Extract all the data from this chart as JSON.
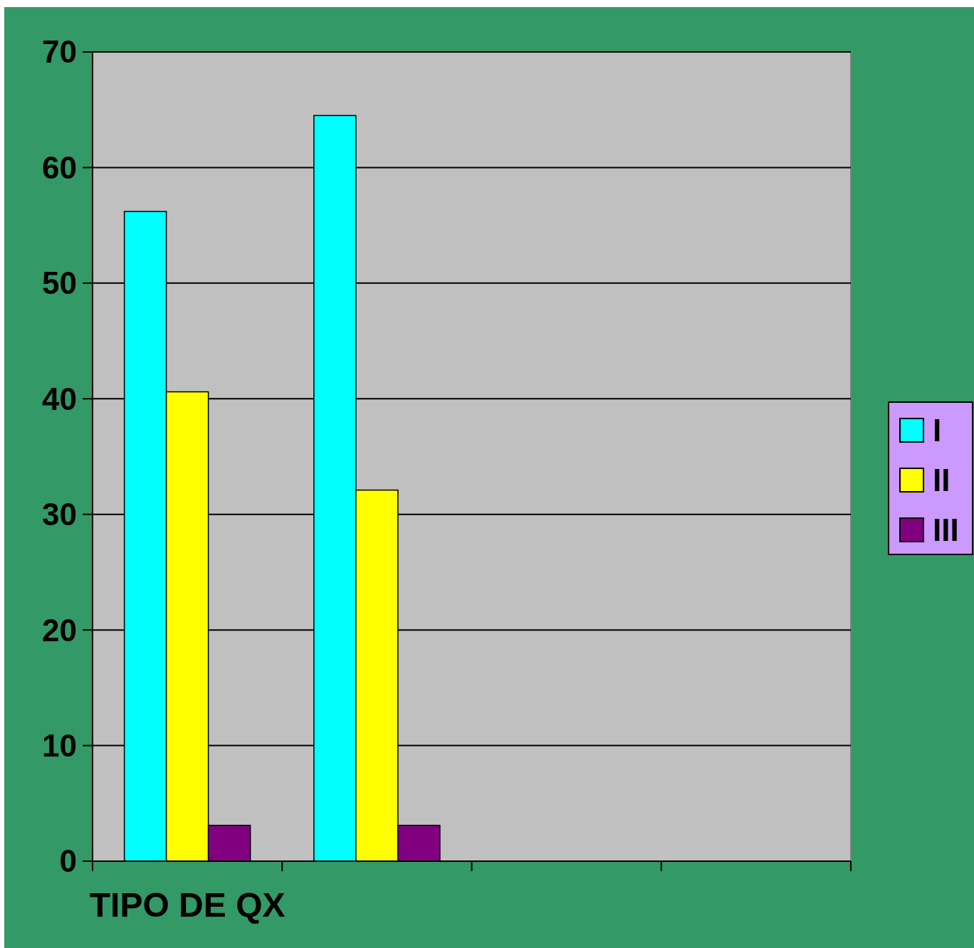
{
  "chart_data": {
    "type": "bar",
    "categories": [
      "TIPO DE QX",
      null,
      null,
      null
    ],
    "series": [
      {
        "name": "I",
        "color": "#00ffff",
        "values": [
          56.2,
          64.5,
          null,
          null
        ]
      },
      {
        "name": "II",
        "color": "#ffff00",
        "values": [
          40.6,
          32.1,
          null,
          null
        ]
      },
      {
        "name": "III",
        "color": "#800080",
        "values": [
          3.1,
          3.1,
          null,
          null
        ]
      }
    ],
    "ylim": [
      0,
      70
    ],
    "yticks": [
      0,
      10,
      20,
      30,
      40,
      50,
      60,
      70
    ],
    "grid": "y",
    "legend": "right"
  }
}
